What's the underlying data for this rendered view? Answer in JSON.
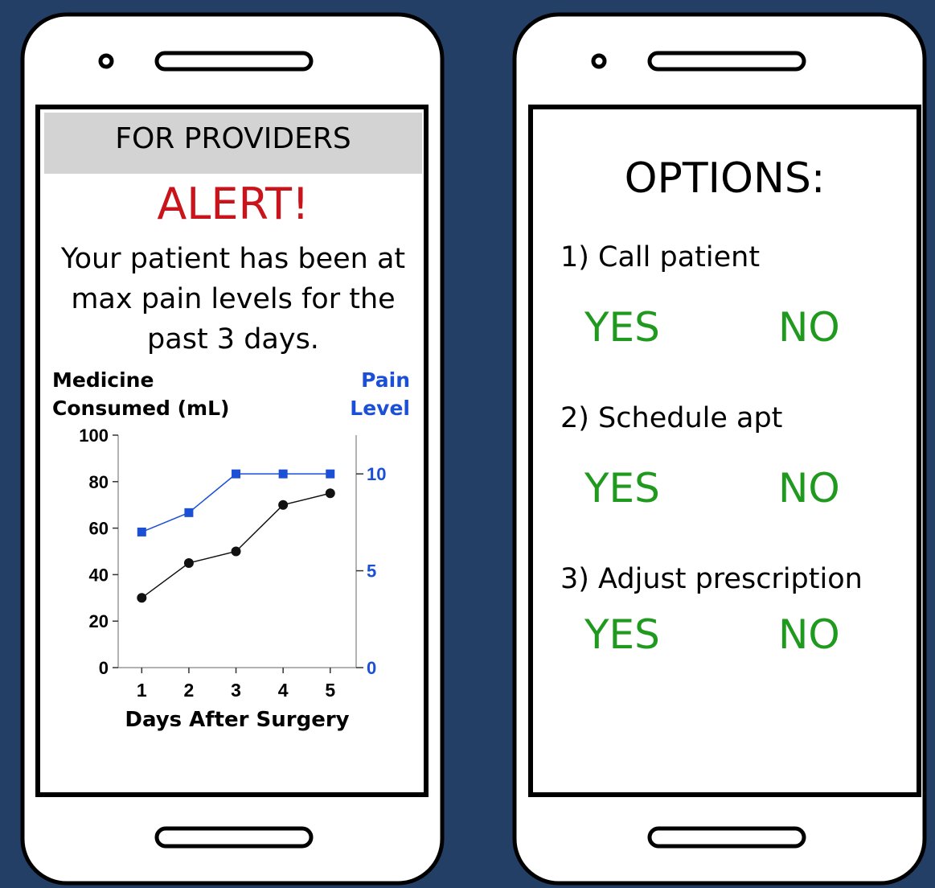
{
  "left_screen": {
    "header": "FOR PROVIDERS",
    "alert": "ALERT!",
    "message": "Your patient has been at max pain levels for the past 3 days."
  },
  "chart_data": {
    "type": "line",
    "xlabel": "Days After Surgery",
    "ylabel": "Medicine Consumed (mL)",
    "y2label": "Pain Level",
    "x": [
      1,
      2,
      3,
      4,
      5
    ],
    "xlim": [
      0.5,
      5.55
    ],
    "xticks": [
      1,
      2,
      3,
      4,
      5
    ],
    "ylim": [
      0,
      100
    ],
    "yticks": [
      0,
      20,
      40,
      60,
      80,
      100
    ],
    "y2lim": [
      0,
      12
    ],
    "y2ticks": [
      0,
      5,
      10
    ],
    "series": [
      {
        "name": "Medicine Consumed (mL)",
        "color": "#111111",
        "values": [
          30,
          45,
          50,
          70,
          75
        ]
      },
      {
        "name": "Pain Level",
        "color": "#1a4fd6",
        "axis": "y2",
        "values": [
          7,
          8,
          10,
          10,
          10
        ]
      }
    ]
  },
  "right_screen": {
    "title": "OPTIONS:",
    "options": [
      {
        "label": "1) Call patient",
        "yes": "YES",
        "no": "NO"
      },
      {
        "label": "2) Schedule apt",
        "yes": "YES",
        "no": "NO"
      },
      {
        "label": "3) Adjust prescription",
        "yes": "YES",
        "no": "NO"
      }
    ]
  }
}
